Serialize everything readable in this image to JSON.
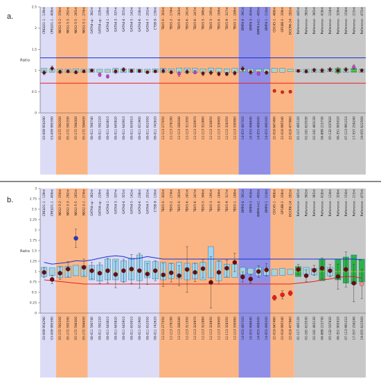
{
  "figure": {
    "panels": [
      {
        "letter": "a.",
        "ylabel": "Ratio",
        "yticks": [
          "0",
          "0.5",
          "1",
          "1.5",
          "2",
          "2.5"
        ],
        "ylim": [
          0,
          2.5
        ]
      },
      {
        "letter": "b.",
        "ylabel": "Ratio",
        "yticks": [
          "0",
          "0.25",
          "0.5",
          "0.75",
          "1",
          "1.25",
          "1.5",
          "1.75",
          "2",
          "2.25",
          "2.5",
          "2.75",
          "3"
        ],
        "ylim": [
          0,
          3
        ]
      }
    ]
  },
  "colors": {
    "lavender": "#dcdcf7",
    "orange": "#fbb584",
    "blue": "#8f8fe8",
    "gray": "#c8c8c8",
    "box": "#9fd3ef",
    "box_green": "#2bb34a",
    "dot": "#6b0b12",
    "dot_magenta": "#d23ad6",
    "dot_red": "#f01818",
    "dot_blue": "#2a37c8",
    "dot_pink": "#f08f8f",
    "upper_line": "#1a2fd0",
    "lower_line": "#e21f1f",
    "median": "#f4d100"
  },
  "chart_data": [
    {
      "type": "box",
      "panel": "a.",
      "ylabel": "Ratio",
      "ylim": [
        0,
        2.5
      ],
      "categories": [
        "CRELD1-1 - 139nt",
        "CRELD1-1 - 408nt",
        "NKX2-5-2 - 256nt",
        "NKX2-5-3 - 292nt",
        "NKX2-5-5 - 265nt",
        "NKX2-5-1 - 274nt",
        "GATA4-up - 382nt",
        "GATA4-up - 229nt",
        "GATA4-1 - 148nt",
        "GATA4-3 - 337nt",
        "GATA4-4 - 355nt",
        "GATA4-5 - 142nt",
        "GATA4-6 - 238nt",
        "GATA4-7 - 202nt",
        "CTSB-9 - 130nt",
        "TBX5-0 - 303nt",
        "TBX5-2 - 174nt",
        "TBX5-6 - 283nt",
        "TBX5-6 - 241nt",
        "TBX5-6 - 247nt",
        "TBX5-5 - 346nt",
        "TBX5-3 - 195nt",
        "TBX5-8 - 184nt",
        "TBX5-9 - 317nt",
        "TBX5-1 - 189nt",
        "BMP4-4 - 391nt",
        "BMP4-3 - 454nt",
        "BMP4-Int1 - 493nt",
        "BMP4-1 - 214nt",
        "CDC45-1 - 468nt",
        "GP1BB-2 - 208nt",
        "DGCR6-14 - 282nt",
        "Reference - 445nt",
        "Reference - 382nt",
        "Reference - 365nt",
        "Reference - 418nt",
        "Reference - 124nt",
        "Reference - 328nt",
        "Reference - 154nt",
        "Reference - 215nt",
        "Reference - 475nt"
      ],
      "samples": [
        "03-009 954290",
        "03-009 995590",
        "05-172 592200",
        "05-172 592330",
        "05-172 594300",
        "05-172 594430",
        "08-011 590740",
        "08-011 592220",
        "08-011 643810",
        "08-011 643820",
        "08-011 643910",
        "08-011 650010",
        "08-011 651900",
        "08-011 652050",
        "08-011 742620",
        "12-113 277050",
        "12-113 278190",
        "12-113 288340",
        "12-113 311050",
        "12-113 320970",
        "12-113 322880",
        "12-113 324850",
        "12-113 326000",
        "12-113 328350",
        "12-113 330060",
        "14-053 487320",
        "14-053 488640",
        "14-053 489500",
        "14-053 490200",
        "22-018 847490",
        "22-018 995540",
        "22-018 477860",
        "01-117 485120",
        "02-181 623530",
        "02-241 463130",
        "04-899 215730",
        "05-132 037620",
        "06-351 905020",
        "07-113 991210",
        "17-557 258240",
        "19-055 622500"
      ],
      "regions": [
        {
          "name": "lavender",
          "start": 0,
          "end": 1
        },
        {
          "name": "orange",
          "start": 2,
          "end": 5
        },
        {
          "name": "lavender",
          "start": 6,
          "end": 14
        },
        {
          "name": "orange",
          "start": 15,
          "end": 24
        },
        {
          "name": "blue",
          "start": 25,
          "end": 28
        },
        {
          "name": "orange",
          "start": 29,
          "end": 31
        },
        {
          "name": "gray",
          "start": 32,
          "end": 40
        }
      ],
      "threshold_upper": 1.3,
      "threshold_lower": 0.7,
      "points": [
        0.95,
        1.05,
        0.97,
        0.98,
        0.96,
        0.98,
        1.0,
        0.9,
        0.86,
        0.98,
        1.02,
        0.99,
        0.99,
        0.96,
        0.98,
        0.99,
        0.96,
        0.92,
        0.97,
        0.96,
        0.93,
        0.95,
        0.92,
        0.92,
        0.94,
        1.04,
        0.96,
        0.93,
        0.95,
        0.52,
        0.49,
        0.5,
        0.99,
        0.98,
        1.01,
        1.0,
        1.02,
        1.0,
        1.02,
        1.08,
        1.0
      ],
      "point_colors": [
        "dot",
        "dot",
        "dot",
        "dot",
        "dot",
        "dot",
        "dot",
        "dot_magenta",
        "dot_magenta",
        "dot",
        "dot",
        "dot",
        "dot",
        "dot",
        "dot",
        "dot",
        "dot",
        "dot_magenta",
        "dot",
        "dot_magenta",
        "dot",
        "dot",
        "dot",
        "dot",
        "dot",
        "dot",
        "dot",
        "dot_magenta",
        "dot",
        "dot_red",
        "dot_red",
        "dot_red",
        "dot",
        "dot",
        "dot",
        "dot",
        "dot",
        "dot",
        "dot",
        "dot_magenta",
        "dot"
      ],
      "box_low": [
        0.95,
        0.96,
        0.95,
        0.95,
        0.95,
        0.96,
        0.96,
        0.96,
        0.96,
        0.95,
        0.95,
        0.96,
        0.96,
        0.96,
        0.96,
        0.96,
        0.96,
        0.96,
        0.95,
        0.95,
        0.96,
        0.96,
        0.96,
        0.95,
        0.95,
        0.97,
        0.96,
        0.97,
        0.96,
        0.96,
        0.96,
        0.97,
        0.97,
        0.95,
        0.96,
        0.96,
        0.97,
        0.95,
        0.96,
        0.96,
        0.96
      ],
      "box_high": [
        1.05,
        1.04,
        1.03,
        1.03,
        1.04,
        1.03,
        1.04,
        1.03,
        1.03,
        1.05,
        1.04,
        1.04,
        1.03,
        1.03,
        1.04,
        1.05,
        1.04,
        1.06,
        1.06,
        1.05,
        1.04,
        1.06,
        1.05,
        1.04,
        1.05,
        1.04,
        1.04,
        1.03,
        1.04,
        1.05,
        1.05,
        1.03,
        1.02,
        1.03,
        1.03,
        1.02,
        1.04,
        1.05,
        1.04,
        1.05,
        1.03
      ],
      "box_green": [
        false,
        false,
        false,
        false,
        false,
        false,
        false,
        false,
        false,
        false,
        false,
        false,
        false,
        false,
        false,
        false,
        false,
        false,
        false,
        false,
        false,
        false,
        false,
        false,
        false,
        false,
        false,
        false,
        false,
        false,
        false,
        false,
        false,
        false,
        false,
        false,
        false,
        true,
        false,
        true,
        false
      ],
      "err": [
        0.05,
        0.06,
        0.04,
        0.03,
        0.04,
        0.03,
        0.03,
        0.04,
        0.04,
        0.05,
        0.05,
        0.04,
        0.04,
        0.03,
        0.03,
        0.05,
        0.04,
        0.06,
        0.05,
        0.04,
        0.05,
        0.05,
        0.05,
        0.04,
        0.05,
        0.06,
        0.05,
        0.04,
        0.04,
        0.03,
        0.03,
        0.03,
        0.03,
        0.04,
        0.04,
        0.05,
        0.05,
        0.07,
        0.05,
        0.05,
        0.04
      ]
    },
    {
      "type": "box",
      "panel": "b.",
      "ylabel": "Ratio",
      "ylim": [
        0,
        3
      ],
      "categories": [
        "CRELD1-1 - 139nt",
        "CRELD1-1 - 408nt",
        "NKX2-5-2 - 256nt",
        "NKX2-5-3 - 292nt",
        "NKX2-5-5 - 265nt",
        "NKX2-5-1 - 274nt",
        "GATA4-up - 382nt",
        "GATA4-up - 229nt",
        "GATA4-1 - 148nt",
        "GATA4-3 - 337nt",
        "GATA4-4 - 355nt",
        "GATA4-5 - 142nt",
        "GATA4-6 - 238nt",
        "GATA4-7 - 202nt",
        "CTSB-9 - 130nt",
        "TBX5-0 - 303nt",
        "TBX5-2 - 174nt",
        "TBX5-6 - 283nt",
        "TBX5-6 - 241nt",
        "TBX5-6 - 247nt",
        "TBX5-5 - 346nt",
        "TBX5-3 - 195nt",
        "TBX5-8 - 184nt",
        "TBX5-9 - 317nt",
        "TBX5-1 - 189nt",
        "BMP4-4 - 391nt",
        "BMP4-3 - 454nt",
        "BMP4-Int1 - 493nt",
        "BMP4-1 - 214nt",
        "CDC45-1 - 468nt",
        "GP1BB-2 - 208nt",
        "DGCR6-14 - 282nt",
        "Reference - 445nt",
        "Reference - 382nt",
        "Reference - 365nt",
        "Reference - 418nt",
        "Reference - 124nt",
        "Reference - 328nt",
        "Reference - 154nt",
        "Reference - 215nt",
        "Reference - 475nt"
      ],
      "samples": [
        "03-009 954290",
        "03-009 995590",
        "05-172 592200",
        "05-172 592330",
        "05-172 594300",
        "05-172 594430",
        "08-011 590740",
        "08-011 592220",
        "08-011 643810",
        "08-011 643820",
        "08-011 643910",
        "08-011 650010",
        "08-011 651900",
        "08-011 652050",
        "08-011 742620",
        "12-113 277050",
        "12-113 278190",
        "12-113 288340",
        "12-113 311050",
        "12-113 320970",
        "12-113 322880",
        "12-113 324850",
        "12-113 326000",
        "12-113 328350",
        "12-113 330060",
        "14-053 487320",
        "14-053 488640",
        "14-053 489500",
        "14-053 490200",
        "22-018 847490",
        "22-018 995540",
        "22-018 477860",
        "01-117 485120",
        "02-181 623530",
        "02-241 463130",
        "04-899 215730",
        "05-132 037620",
        "06-351 905020",
        "07-113 991210",
        "17-557 258240",
        "19-055 622500"
      ],
      "regions": [
        {
          "name": "lavender",
          "start": 0,
          "end": 1
        },
        {
          "name": "orange",
          "start": 2,
          "end": 5
        },
        {
          "name": "lavender",
          "start": 6,
          "end": 14
        },
        {
          "name": "orange",
          "start": 15,
          "end": 24
        },
        {
          "name": "blue",
          "start": 25,
          "end": 28
        },
        {
          "name": "orange",
          "start": 29,
          "end": 31
        },
        {
          "name": "gray",
          "start": 32,
          "end": 40
        }
      ],
      "threshold_upper": [
        1.22,
        1.18,
        1.2,
        1.22,
        1.26,
        1.25,
        1.28,
        1.32,
        1.36,
        1.38,
        1.36,
        1.3,
        1.32,
        1.36,
        1.33,
        1.3,
        1.3,
        1.3,
        1.3,
        1.3,
        1.3,
        1.3,
        1.3,
        1.3,
        1.3,
        1.3,
        1.3,
        1.3,
        1.3,
        1.3,
        1.3,
        1.3,
        1.3,
        1.3,
        1.3,
        1.3,
        1.3,
        1.3,
        1.3,
        1.3,
        1.28
      ],
      "threshold_lower": [
        0.8,
        0.78,
        0.76,
        0.74,
        0.72,
        0.7,
        0.7,
        0.7,
        0.7,
        0.7,
        0.7,
        0.7,
        0.7,
        0.7,
        0.7,
        0.7,
        0.7,
        0.7,
        0.7,
        0.7,
        0.7,
        0.7,
        0.7,
        0.7,
        0.7,
        0.7,
        0.7,
        0.7,
        0.7,
        0.7,
        0.7,
        0.7,
        0.72,
        0.74,
        0.76,
        0.8,
        0.82,
        0.86,
        0.88,
        0.88,
        0.84
      ],
      "points": [
        0.98,
        0.81,
        0.96,
        1.06,
        1.8,
        1.1,
        1.02,
        0.96,
        1.02,
        0.93,
        1.02,
        1.06,
        1.02,
        0.94,
        1.02,
        0.92,
        0.97,
        0.9,
        1.05,
        0.98,
        1.07,
        0.74,
        0.98,
        1.08,
        1.22,
        0.87,
        0.82,
        1.0,
        1.04,
        0.37,
        0.44,
        0.48,
        1.05,
        0.9,
        1.03,
        1.08,
        1.02,
        0.88,
        1.05,
        0.72,
        0.7
      ],
      "point_colors": [
        "dot",
        "dot",
        "dot",
        "dot",
        "dot_blue",
        "dot",
        "dot",
        "dot",
        "dot",
        "dot",
        "dot",
        "dot",
        "dot",
        "dot",
        "dot",
        "dot",
        "dot",
        "dot",
        "dot",
        "dot",
        "dot",
        "dot",
        "dot",
        "dot",
        "dot",
        "dot",
        "dot",
        "dot",
        "dot",
        "dot_red",
        "dot_red",
        "dot_red",
        "dot",
        "dot",
        "dot",
        "dot",
        "dot",
        "dot",
        "dot",
        "dot",
        "dot_pink"
      ],
      "box_low": [
        0.88,
        0.9,
        0.85,
        0.86,
        0.9,
        0.88,
        0.8,
        0.77,
        0.8,
        0.8,
        0.76,
        0.8,
        0.78,
        0.85,
        0.82,
        0.8,
        0.83,
        0.83,
        0.8,
        0.82,
        0.8,
        0.85,
        0.78,
        0.86,
        0.86,
        0.93,
        0.94,
        0.9,
        0.91,
        0.9,
        0.91,
        0.93,
        0.88,
        0.92,
        0.92,
        0.78,
        0.9,
        0.8,
        0.72,
        0.7,
        0.75
      ],
      "box_high": [
        1.1,
        1.09,
        1.12,
        1.13,
        1.15,
        1.14,
        1.15,
        1.16,
        1.3,
        1.3,
        1.26,
        1.32,
        1.4,
        1.25,
        1.24,
        1.22,
        1.2,
        1.22,
        1.2,
        1.2,
        1.22,
        1.6,
        1.25,
        1.18,
        1.18,
        1.1,
        1.08,
        1.1,
        1.1,
        1.06,
        1.08,
        1.06,
        1.12,
        1.1,
        1.08,
        1.3,
        1.1,
        1.3,
        1.35,
        1.4,
        1.3
      ],
      "box_green": [
        false,
        false,
        false,
        false,
        false,
        false,
        false,
        false,
        false,
        false,
        false,
        false,
        false,
        false,
        false,
        false,
        false,
        false,
        false,
        false,
        false,
        false,
        false,
        false,
        false,
        false,
        false,
        false,
        false,
        false,
        false,
        false,
        true,
        false,
        false,
        true,
        false,
        true,
        true,
        true,
        true
      ],
      "err": [
        0.12,
        0.1,
        0.15,
        0.18,
        0.22,
        0.2,
        0.2,
        0.25,
        0.3,
        0.32,
        0.28,
        0.35,
        0.42,
        0.25,
        0.24,
        0.28,
        0.22,
        0.24,
        0.55,
        0.22,
        0.22,
        0.62,
        0.28,
        0.2,
        0.22,
        0.12,
        0.1,
        0.14,
        0.15,
        0.06,
        0.1,
        0.06,
        0.12,
        0.14,
        0.12,
        0.25,
        0.15,
        0.3,
        0.42,
        0.45,
        0.35
      ]
    }
  ]
}
